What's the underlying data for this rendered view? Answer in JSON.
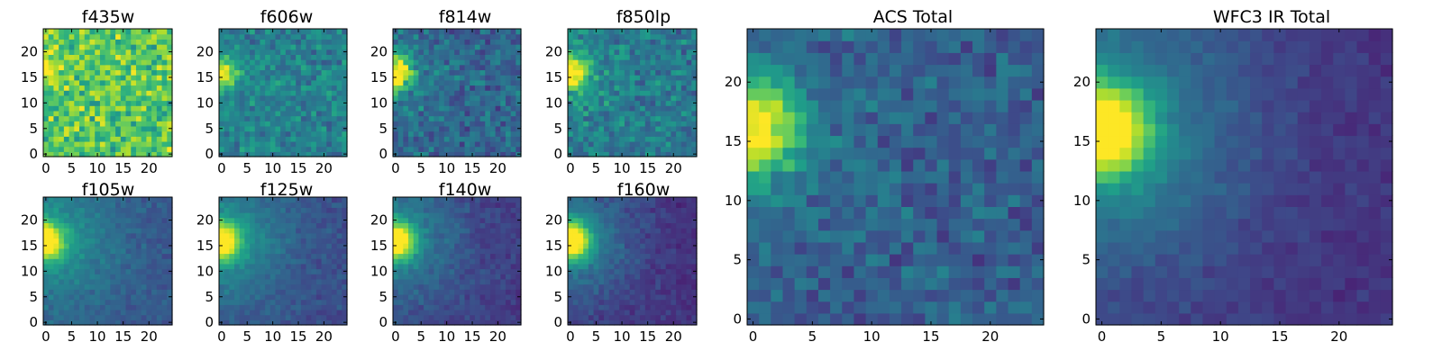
{
  "figure": {
    "background": "#ffffff"
  },
  "colormap": {
    "name": "viridis",
    "stops": [
      "#440154",
      "#482878",
      "#3e4989",
      "#31688e",
      "#26828e",
      "#1f9e89",
      "#35b779",
      "#6ece58",
      "#b5de2b",
      "#fde725"
    ]
  },
  "chart_data": [
    {
      "type": "heatmap",
      "title": "f435w",
      "grid_size": 25,
      "grid": false,
      "xlim": [
        0,
        24
      ],
      "ylim": [
        0,
        24
      ],
      "xticks": [
        0,
        5,
        10,
        15,
        20
      ],
      "yticks": [
        0,
        5,
        10,
        15,
        20
      ],
      "source_center": [
        0,
        16
      ],
      "peak_level": 1.0,
      "background_level": 0.74,
      "noise_level": 0.17,
      "source_width": 2.0,
      "halo_level": 0.0,
      "halo_width": 6
    },
    {
      "type": "heatmap",
      "title": "f606w",
      "grid_size": 25,
      "grid": false,
      "xlim": [
        0,
        24
      ],
      "ylim": [
        0,
        24
      ],
      "xticks": [
        0,
        5,
        10,
        15,
        20
      ],
      "yticks": [
        0,
        5,
        10,
        15,
        20
      ],
      "source_center": [
        0,
        16
      ],
      "peak_level": 1.0,
      "background_level": 0.44,
      "noise_level": 0.12,
      "source_width": 2.0,
      "halo_level": 0.0,
      "halo_width": 6
    },
    {
      "type": "heatmap",
      "title": "f814w",
      "grid_size": 25,
      "grid": false,
      "xlim": [
        0,
        24
      ],
      "ylim": [
        0,
        24
      ],
      "xticks": [
        0,
        5,
        10,
        15,
        20
      ],
      "yticks": [
        0,
        5,
        10,
        15,
        20
      ],
      "source_center": [
        0,
        16
      ],
      "peak_level": 1.0,
      "background_level": 0.32,
      "noise_level": 0.12,
      "source_width": 2.2,
      "halo_level": 0.12,
      "halo_width": 7
    },
    {
      "type": "heatmap",
      "title": "f850lp",
      "grid_size": 25,
      "grid": false,
      "xlim": [
        0,
        24
      ],
      "ylim": [
        0,
        24
      ],
      "xticks": [
        0,
        5,
        10,
        15,
        20
      ],
      "yticks": [
        0,
        5,
        10,
        15,
        20
      ],
      "source_center": [
        0,
        16
      ],
      "peak_level": 1.0,
      "background_level": 0.4,
      "noise_level": 0.12,
      "source_width": 2.2,
      "halo_level": 0.12,
      "halo_width": 7
    },
    {
      "type": "heatmap",
      "title": "ACS Total",
      "grid_size": 25,
      "grid": false,
      "xlim": [
        0,
        24
      ],
      "ylim": [
        0,
        24
      ],
      "xticks": [
        0,
        5,
        10,
        15,
        20
      ],
      "yticks": [
        0,
        5,
        10,
        15,
        20
      ],
      "source_center": [
        0,
        16
      ],
      "peak_level": 1.0,
      "background_level": 0.3,
      "noise_level": 0.1,
      "source_width": 2.6,
      "halo_level": 0.1,
      "halo_width": 7
    },
    {
      "type": "heatmap",
      "title": "f105w",
      "grid_size": 25,
      "grid": false,
      "xlim": [
        0,
        24
      ],
      "ylim": [
        0,
        24
      ],
      "xticks": [
        0,
        5,
        10,
        15,
        20
      ],
      "yticks": [
        0,
        5,
        10,
        15,
        20
      ],
      "source_center": [
        0,
        16
      ],
      "peak_level": 1.0,
      "background_level": 0.28,
      "noise_level": 0.05,
      "source_width": 2.4,
      "halo_level": 0.25,
      "halo_width": 9
    },
    {
      "type": "heatmap",
      "title": "f125w",
      "grid_size": 25,
      "grid": false,
      "xlim": [
        0,
        24
      ],
      "ylim": [
        0,
        24
      ],
      "xticks": [
        0,
        5,
        10,
        15,
        20
      ],
      "yticks": [
        0,
        5,
        10,
        15,
        20
      ],
      "source_center": [
        0,
        16
      ],
      "peak_level": 1.0,
      "background_level": 0.24,
      "noise_level": 0.05,
      "source_width": 2.4,
      "halo_level": 0.27,
      "halo_width": 9
    },
    {
      "type": "heatmap",
      "title": "f140w",
      "grid_size": 25,
      "grid": false,
      "xlim": [
        0,
        24
      ],
      "ylim": [
        0,
        24
      ],
      "xticks": [
        0,
        5,
        10,
        15,
        20
      ],
      "yticks": [
        0,
        5,
        10,
        15,
        20
      ],
      "source_center": [
        0,
        16
      ],
      "peak_level": 1.0,
      "background_level": 0.18,
      "noise_level": 0.05,
      "source_width": 2.5,
      "halo_level": 0.28,
      "halo_width": 9
    },
    {
      "type": "heatmap",
      "title": "f160w",
      "grid_size": 25,
      "grid": false,
      "xlim": [
        0,
        24
      ],
      "ylim": [
        0,
        24
      ],
      "xticks": [
        0,
        5,
        10,
        15,
        20
      ],
      "yticks": [
        0,
        5,
        10,
        15,
        20
      ],
      "source_center": [
        0,
        16
      ],
      "peak_level": 1.0,
      "background_level": 0.14,
      "noise_level": 0.05,
      "source_width": 2.5,
      "halo_level": 0.3,
      "halo_width": 9
    },
    {
      "type": "heatmap",
      "title": "WFC3 IR Total",
      "grid_size": 25,
      "grid": false,
      "xlim": [
        0,
        24
      ],
      "ylim": [
        0,
        24
      ],
      "xticks": [
        0,
        5,
        10,
        15,
        20
      ],
      "yticks": [
        0,
        5,
        10,
        15,
        20
      ],
      "source_center": [
        0,
        16
      ],
      "peak_level": 1.0,
      "background_level": 0.15,
      "noise_level": 0.04,
      "source_width": 2.7,
      "halo_level": 0.3,
      "halo_width": 9
    }
  ]
}
